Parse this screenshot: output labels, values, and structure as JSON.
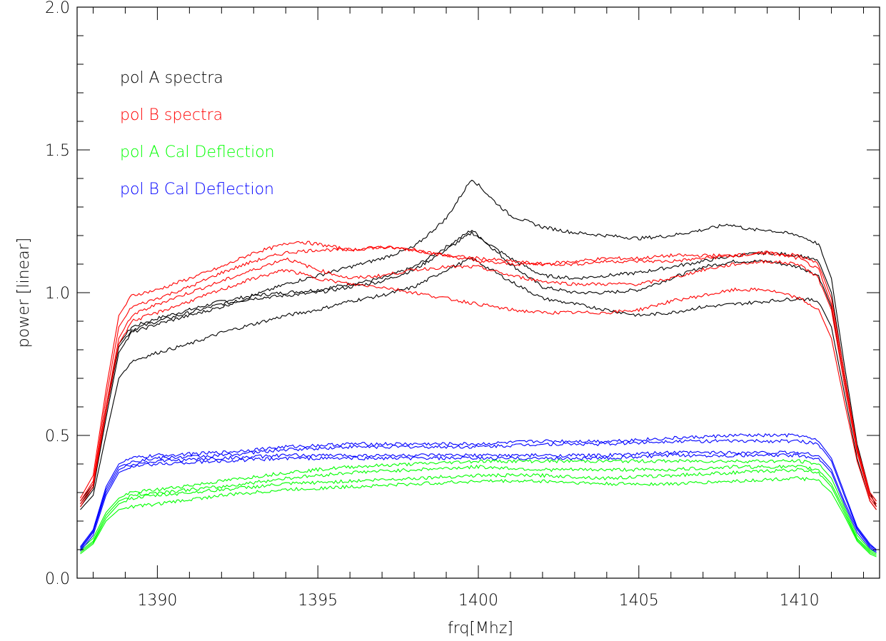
{
  "chart_data": {
    "type": "line",
    "title": "",
    "xlabel": "frq[Mhz]",
    "ylabel": "power [linear]",
    "xlim": [
      1387.5,
      1412.5
    ],
    "ylim": [
      0.0,
      2.0
    ],
    "x_ticks": [
      1390,
      1395,
      1400,
      1405,
      1410
    ],
    "x_tick_labels": [
      "1390",
      "1395",
      "1400",
      "1405",
      "1410"
    ],
    "y_ticks": [
      0.0,
      0.5,
      1.0,
      1.5,
      2.0
    ],
    "y_tick_labels": [
      "0.0",
      "0.5",
      "1.0",
      "1.5",
      "2.0"
    ],
    "x_minor_step": 1,
    "y_minor_step": 0.1,
    "grid": false,
    "legend_position": "top-left",
    "legend": [
      {
        "label": "pol A spectra",
        "color": "#000000"
      },
      {
        "label": "pol B spectra",
        "color": "#ff0000"
      },
      {
        "label": "pol A Cal Deflection",
        "color": "#00ff00"
      },
      {
        "label": "pol B Cal Deflection",
        "color": "#0000ff"
      }
    ],
    "series": [
      {
        "group": "pol A spectra",
        "color": "#000000",
        "x": [
          1387.6,
          1388.0,
          1388.4,
          1388.8,
          1389.2,
          1390,
          1391,
          1392,
          1393,
          1394,
          1395,
          1396,
          1397,
          1398,
          1399,
          1399.8,
          1401,
          1402,
          1403,
          1404,
          1405,
          1406,
          1407,
          1408,
          1409,
          1410,
          1410.6,
          1411.0,
          1411.4,
          1411.8,
          1412.2,
          1412.4
        ],
        "y": [
          0.27,
          0.33,
          0.6,
          0.82,
          0.88,
          0.91,
          0.94,
          0.97,
          0.99,
          1.0,
          1.01,
          1.03,
          1.05,
          1.09,
          1.16,
          1.22,
          1.1,
          1.02,
          1.0,
          1.0,
          1.01,
          1.05,
          1.09,
          1.11,
          1.11,
          1.09,
          1.06,
          0.95,
          0.7,
          0.45,
          0.3,
          0.27
        ]
      },
      {
        "group": "pol A spectra",
        "color": "#000000",
        "x": [
          1387.6,
          1388.0,
          1388.4,
          1388.8,
          1389.2,
          1390,
          1391,
          1392,
          1393,
          1394,
          1395,
          1396,
          1397,
          1398,
          1399,
          1399.8,
          1401,
          1402,
          1403,
          1404,
          1405,
          1406,
          1407,
          1408,
          1409,
          1410,
          1410.6,
          1411.0,
          1411.4,
          1411.8,
          1412.2,
          1412.4
        ],
        "y": [
          0.26,
          0.32,
          0.58,
          0.81,
          0.87,
          0.9,
          0.93,
          0.96,
          0.98,
          0.99,
          1.0,
          1.02,
          1.04,
          1.08,
          1.15,
          1.21,
          1.12,
          1.06,
          1.05,
          1.06,
          1.07,
          1.09,
          1.11,
          1.13,
          1.14,
          1.13,
          1.11,
          1.0,
          0.72,
          0.45,
          0.29,
          0.26
        ]
      },
      {
        "group": "pol A spectra",
        "color": "#000000",
        "x": [
          1387.6,
          1388.0,
          1388.4,
          1388.8,
          1389.2,
          1390,
          1391,
          1392,
          1393,
          1394,
          1395,
          1396,
          1397,
          1398,
          1399,
          1399.8,
          1400.5,
          1401,
          1402,
          1403,
          1404,
          1405,
          1406,
          1407,
          1407.8,
          1408.5,
          1409,
          1410,
          1410.6,
          1411.0,
          1411.4,
          1411.8,
          1412.2,
          1412.4
        ],
        "y": [
          0.25,
          0.31,
          0.56,
          0.79,
          0.86,
          0.89,
          0.92,
          0.95,
          0.99,
          1.03,
          1.06,
          1.09,
          1.12,
          1.16,
          1.26,
          1.4,
          1.32,
          1.27,
          1.23,
          1.21,
          1.2,
          1.19,
          1.2,
          1.22,
          1.24,
          1.22,
          1.22,
          1.2,
          1.17,
          1.05,
          0.75,
          0.47,
          0.3,
          0.25
        ]
      },
      {
        "group": "pol A spectra",
        "color": "#000000",
        "x": [
          1387.6,
          1388.0,
          1388.4,
          1388.8,
          1389.2,
          1390,
          1391,
          1392,
          1393,
          1394,
          1395,
          1396,
          1397,
          1398,
          1399,
          1399.8,
          1401,
          1402,
          1403,
          1404,
          1405,
          1406,
          1407,
          1408,
          1409,
          1410,
          1410.6,
          1411.0,
          1411.4,
          1411.8,
          1412.2,
          1412.4
        ],
        "y": [
          0.24,
          0.29,
          0.5,
          0.7,
          0.76,
          0.79,
          0.82,
          0.86,
          0.89,
          0.92,
          0.94,
          0.97,
          0.99,
          1.02,
          1.08,
          1.12,
          1.04,
          0.98,
          0.96,
          0.94,
          0.92,
          0.93,
          0.95,
          0.96,
          0.97,
          0.98,
          0.97,
          0.88,
          0.65,
          0.42,
          0.27,
          0.24
        ]
      },
      {
        "group": "pol B spectra",
        "color": "#ff0000",
        "x": [
          1387.6,
          1388.0,
          1388.4,
          1388.8,
          1389.2,
          1390,
          1391,
          1392,
          1393,
          1394,
          1394.3,
          1395,
          1396,
          1397,
          1398,
          1399,
          1400,
          1401,
          1402,
          1403,
          1404,
          1405,
          1406,
          1407,
          1408,
          1409,
          1410,
          1410.6,
          1411.0,
          1411.4,
          1411.8,
          1412.2,
          1412.4
        ],
        "y": [
          0.28,
          0.36,
          0.66,
          0.92,
          0.99,
          1.01,
          1.05,
          1.09,
          1.14,
          1.17,
          1.18,
          1.17,
          1.15,
          1.16,
          1.15,
          1.13,
          1.12,
          1.11,
          1.1,
          1.11,
          1.12,
          1.12,
          1.13,
          1.13,
          1.13,
          1.14,
          1.13,
          1.1,
          0.98,
          0.72,
          0.46,
          0.3,
          0.27
        ]
      },
      {
        "group": "pol B spectra",
        "color": "#ff0000",
        "x": [
          1387.6,
          1388.0,
          1388.4,
          1388.8,
          1389.2,
          1390,
          1391,
          1392,
          1393,
          1394,
          1395,
          1396,
          1397,
          1398,
          1399,
          1400,
          1401,
          1402,
          1403,
          1404,
          1405,
          1406,
          1407,
          1408,
          1409,
          1410,
          1410.6,
          1411.0,
          1411.4,
          1411.8,
          1412.2,
          1412.4
        ],
        "y": [
          0.27,
          0.34,
          0.63,
          0.88,
          0.95,
          0.98,
          1.02,
          1.07,
          1.11,
          1.14,
          1.15,
          1.15,
          1.16,
          1.15,
          1.13,
          1.11,
          1.1,
          1.1,
          1.1,
          1.11,
          1.11,
          1.11,
          1.12,
          1.13,
          1.14,
          1.12,
          1.08,
          0.96,
          0.7,
          0.45,
          0.29,
          0.26
        ]
      },
      {
        "group": "pol B spectra",
        "color": "#ff0000",
        "x": [
          1387.6,
          1388.0,
          1388.4,
          1388.8,
          1389.2,
          1390,
          1391,
          1392,
          1393,
          1394,
          1395,
          1396,
          1397,
          1398,
          1399,
          1400,
          1401,
          1402,
          1403,
          1404,
          1405,
          1406,
          1407,
          1408,
          1409,
          1410,
          1410.6,
          1411.0,
          1411.4,
          1411.8,
          1412.2,
          1412.4
        ],
        "y": [
          0.26,
          0.33,
          0.6,
          0.84,
          0.92,
          0.96,
          1.0,
          1.04,
          1.08,
          1.12,
          1.08,
          1.05,
          1.06,
          1.08,
          1.09,
          1.09,
          1.06,
          1.04,
          1.03,
          1.03,
          1.03,
          1.05,
          1.08,
          1.1,
          1.11,
          1.1,
          1.05,
          0.94,
          0.68,
          0.44,
          0.28,
          0.25
        ]
      },
      {
        "group": "pol B spectra",
        "color": "#ff0000",
        "x": [
          1387.6,
          1388.0,
          1388.4,
          1388.8,
          1389.2,
          1390,
          1391,
          1392,
          1393,
          1394,
          1395,
          1396,
          1397,
          1398,
          1399,
          1400,
          1401,
          1402,
          1403,
          1404,
          1405,
          1406,
          1407,
          1408,
          1409,
          1410,
          1410.6,
          1411.0,
          1411.4,
          1411.8,
          1412.2,
          1412.4
        ],
        "y": [
          0.25,
          0.32,
          0.58,
          0.82,
          0.9,
          0.93,
          0.97,
          1.01,
          1.05,
          1.08,
          1.05,
          1.03,
          1.02,
          1.0,
          0.98,
          0.96,
          0.94,
          0.93,
          0.93,
          0.93,
          0.94,
          0.97,
          0.99,
          1.01,
          1.01,
          0.98,
          0.94,
          0.84,
          0.62,
          0.41,
          0.27,
          0.24
        ]
      },
      {
        "group": "pol A Cal Deflection",
        "color": "#00ff00",
        "x": [
          1387.6,
          1388.0,
          1388.4,
          1388.8,
          1389.2,
          1390,
          1392,
          1394,
          1396,
          1398,
          1400,
          1402,
          1404,
          1406,
          1408,
          1410,
          1410.6,
          1411.0,
          1411.4,
          1411.8,
          1412.2,
          1412.4
        ],
        "y": [
          0.1,
          0.14,
          0.23,
          0.28,
          0.3,
          0.31,
          0.34,
          0.37,
          0.39,
          0.4,
          0.41,
          0.41,
          0.41,
          0.41,
          0.41,
          0.41,
          0.4,
          0.35,
          0.25,
          0.15,
          0.1,
          0.09
        ]
      },
      {
        "group": "pol A Cal Deflection",
        "color": "#00ff00",
        "x": [
          1387.6,
          1388.0,
          1388.4,
          1388.8,
          1389.2,
          1390,
          1392,
          1394,
          1396,
          1398,
          1400,
          1402,
          1404,
          1406,
          1408,
          1410,
          1410.6,
          1411.0,
          1411.4,
          1411.8,
          1412.2,
          1412.4
        ],
        "y": [
          0.095,
          0.13,
          0.22,
          0.27,
          0.29,
          0.3,
          0.32,
          0.35,
          0.37,
          0.38,
          0.39,
          0.38,
          0.38,
          0.38,
          0.39,
          0.39,
          0.38,
          0.33,
          0.24,
          0.14,
          0.095,
          0.085
        ]
      },
      {
        "group": "pol A Cal Deflection",
        "color": "#00ff00",
        "x": [
          1387.6,
          1388.0,
          1388.4,
          1388.8,
          1389.2,
          1390,
          1392,
          1394,
          1396,
          1398,
          1400,
          1402,
          1404,
          1406,
          1408,
          1410,
          1410.6,
          1411.0,
          1411.4,
          1411.8,
          1412.2,
          1412.4
        ],
        "y": [
          0.09,
          0.125,
          0.21,
          0.26,
          0.28,
          0.29,
          0.31,
          0.33,
          0.34,
          0.35,
          0.36,
          0.36,
          0.35,
          0.36,
          0.37,
          0.38,
          0.37,
          0.32,
          0.23,
          0.135,
          0.09,
          0.08
        ]
      },
      {
        "group": "pol A Cal Deflection",
        "color": "#00ff00",
        "x": [
          1387.6,
          1388.0,
          1388.4,
          1388.8,
          1389.2,
          1390,
          1392,
          1394,
          1396,
          1398,
          1400,
          1402,
          1404,
          1406,
          1408,
          1410,
          1410.6,
          1411.0,
          1411.4,
          1411.8,
          1412.2,
          1412.4
        ],
        "y": [
          0.085,
          0.12,
          0.2,
          0.24,
          0.25,
          0.26,
          0.29,
          0.31,
          0.32,
          0.33,
          0.34,
          0.34,
          0.33,
          0.33,
          0.34,
          0.35,
          0.34,
          0.3,
          0.22,
          0.13,
          0.085,
          0.075
        ]
      },
      {
        "group": "pol B Cal Deflection",
        "color": "#0000ff",
        "x": [
          1387.6,
          1388.0,
          1388.4,
          1388.8,
          1389.2,
          1390,
          1392,
          1394,
          1396,
          1398,
          1400,
          1402,
          1404,
          1406,
          1408,
          1410,
          1410.6,
          1411.0,
          1411.4,
          1411.8,
          1412.2,
          1412.4
        ],
        "y": [
          0.11,
          0.17,
          0.32,
          0.4,
          0.42,
          0.43,
          0.44,
          0.46,
          0.47,
          0.47,
          0.47,
          0.48,
          0.48,
          0.49,
          0.5,
          0.5,
          0.48,
          0.42,
          0.3,
          0.18,
          0.12,
          0.1
        ]
      },
      {
        "group": "pol B Cal Deflection",
        "color": "#0000ff",
        "x": [
          1387.6,
          1388.0,
          1388.4,
          1388.8,
          1389.2,
          1390,
          1392,
          1394,
          1396,
          1398,
          1400,
          1402,
          1404,
          1406,
          1408,
          1410,
          1410.6,
          1411.0,
          1411.4,
          1411.8,
          1412.2,
          1412.4
        ],
        "y": [
          0.105,
          0.165,
          0.31,
          0.39,
          0.41,
          0.42,
          0.43,
          0.45,
          0.46,
          0.46,
          0.46,
          0.47,
          0.47,
          0.48,
          0.48,
          0.48,
          0.47,
          0.41,
          0.29,
          0.175,
          0.115,
          0.1
        ]
      },
      {
        "group": "pol B Cal Deflection",
        "color": "#0000ff",
        "x": [
          1387.6,
          1388.0,
          1388.4,
          1388.8,
          1389.2,
          1390,
          1392,
          1394,
          1396,
          1398,
          1400,
          1402,
          1404,
          1406,
          1408,
          1410,
          1410.6,
          1411.0,
          1411.4,
          1411.8,
          1412.2,
          1412.4
        ],
        "y": [
          0.1,
          0.16,
          0.3,
          0.38,
          0.4,
          0.41,
          0.42,
          0.43,
          0.43,
          0.43,
          0.43,
          0.43,
          0.43,
          0.44,
          0.44,
          0.44,
          0.43,
          0.38,
          0.27,
          0.17,
          0.11,
          0.095
        ]
      },
      {
        "group": "pol B Cal Deflection",
        "color": "#0000ff",
        "x": [
          1387.6,
          1388.0,
          1388.4,
          1388.8,
          1389.2,
          1390,
          1392,
          1394,
          1396,
          1398,
          1400,
          1402,
          1404,
          1406,
          1408,
          1410,
          1410.6,
          1411.0,
          1411.4,
          1411.8,
          1412.2,
          1412.4
        ],
        "y": [
          0.095,
          0.15,
          0.29,
          0.37,
          0.39,
          0.4,
          0.41,
          0.42,
          0.42,
          0.42,
          0.42,
          0.42,
          0.42,
          0.43,
          0.43,
          0.43,
          0.42,
          0.37,
          0.26,
          0.16,
          0.105,
          0.09
        ]
      }
    ]
  }
}
